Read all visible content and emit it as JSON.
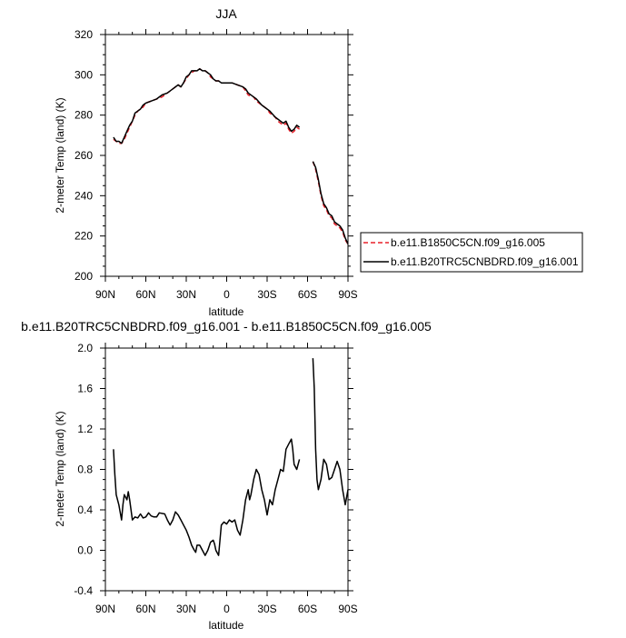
{
  "chart_data": [
    {
      "type": "line",
      "title": "JJA",
      "xlabel": "latitude",
      "ylabel": "2-meter Temp (land) (K)",
      "xlim": [
        90,
        -90
      ],
      "ylim": [
        200,
        320
      ],
      "xticks": [
        90,
        60,
        30,
        0,
        -30,
        -60,
        -90
      ],
      "xtick_labels": [
        "90N",
        "60N",
        "30N",
        "0",
        "30S",
        "60S",
        "90S"
      ],
      "yticks": [
        200,
        220,
        240,
        260,
        280,
        300,
        320
      ],
      "ytick_labels": [
        "200",
        "220",
        "240",
        "260",
        "280",
        "300",
        "320"
      ],
      "legend_position": "right",
      "series": [
        {
          "name": "b.e11.B1850C5CN.f09_g16.005",
          "color": "#e8202a",
          "dash": "dashed",
          "segments": [
            [
              [
                84,
                268
              ],
              [
                82,
                267
              ],
              [
                80,
                266
              ],
              [
                78,
                266
              ],
              [
                76,
                268
              ],
              [
                74,
                271
              ],
              [
                72,
                274
              ],
              [
                70,
                277
              ],
              [
                68,
                280
              ],
              [
                66,
                282
              ],
              [
                64,
                283
              ],
              [
                62,
                284
              ],
              [
                60,
                286
              ],
              [
                56,
                287
              ],
              [
                52,
                288
              ],
              [
                48,
                289
              ],
              [
                44,
                291
              ],
              [
                40,
                293
              ],
              [
                38,
                294
              ],
              [
                36,
                295
              ],
              [
                34,
                294
              ],
              [
                32,
                296
              ],
              [
                30,
                298
              ],
              [
                28,
                300
              ],
              [
                26,
                301
              ],
              [
                24,
                302
              ],
              [
                22,
                302
              ],
              [
                20,
                303
              ],
              [
                18,
                302
              ],
              [
                16,
                302
              ],
              [
                14,
                301
              ],
              [
                12,
                299
              ],
              [
                10,
                298
              ],
              [
                8,
                297
              ],
              [
                6,
                297
              ],
              [
                4,
                296
              ],
              [
                0,
                296
              ],
              [
                -4,
                296
              ],
              [
                -8,
                295
              ],
              [
                -12,
                294
              ],
              [
                -14,
                292
              ],
              [
                -16,
                290
              ],
              [
                -20,
                289
              ],
              [
                -22,
                287
              ],
              [
                -26,
                285
              ],
              [
                -30,
                283
              ],
              [
                -32,
                281
              ],
              [
                -36,
                279
              ],
              [
                -38,
                277
              ],
              [
                -40,
                276
              ],
              [
                -42,
                275
              ],
              [
                -44,
                276
              ],
              [
                -46,
                273
              ],
              [
                -48,
                271
              ],
              [
                -50,
                272
              ],
              [
                -52,
                274
              ],
              [
                -54,
                273
              ]
            ],
            [
              [
                -64,
                257
              ],
              [
                -66,
                253
              ],
              [
                -68,
                247
              ],
              [
                -70,
                240
              ],
              [
                -72,
                235
              ],
              [
                -74,
                233
              ],
              [
                -76,
                230
              ],
              [
                -78,
                229
              ],
              [
                -80,
                226
              ],
              [
                -82,
                225
              ],
              [
                -84,
                224
              ],
              [
                -86,
                222
              ],
              [
                -88,
                218
              ],
              [
                -90,
                216
              ]
            ]
          ]
        },
        {
          "name": "b.e11.B20TRC5CNBDRD.f09_g16.001",
          "color": "#000000",
          "dash": "solid",
          "segments": [
            [
              [
                84,
                269
              ],
              [
                82,
                267
              ],
              [
                80,
                267
              ],
              [
                78,
                266
              ],
              [
                76,
                269
              ],
              [
                74,
                272
              ],
              [
                72,
                275
              ],
              [
                70,
                277
              ],
              [
                68,
                281
              ],
              [
                66,
                282
              ],
              [
                64,
                283
              ],
              [
                62,
                285
              ],
              [
                60,
                286
              ],
              [
                56,
                287
              ],
              [
                52,
                288
              ],
              [
                48,
                290
              ],
              [
                44,
                291
              ],
              [
                40,
                293
              ],
              [
                38,
                294
              ],
              [
                36,
                295
              ],
              [
                34,
                294
              ],
              [
                32,
                296
              ],
              [
                30,
                299
              ],
              [
                28,
                300
              ],
              [
                26,
                302
              ],
              [
                24,
                302
              ],
              [
                22,
                302
              ],
              [
                20,
                303
              ],
              [
                18,
                302
              ],
              [
                16,
                302
              ],
              [
                14,
                301
              ],
              [
                12,
                300
              ],
              [
                10,
                298
              ],
              [
                8,
                297
              ],
              [
                6,
                297
              ],
              [
                4,
                296
              ],
              [
                0,
                296
              ],
              [
                -4,
                296
              ],
              [
                -8,
                295
              ],
              [
                -12,
                294
              ],
              [
                -14,
                293
              ],
              [
                -16,
                291
              ],
              [
                -20,
                289
              ],
              [
                -22,
                288
              ],
              [
                -26,
                285
              ],
              [
                -30,
                283
              ],
              [
                -32,
                282
              ],
              [
                -36,
                279
              ],
              [
                -38,
                278
              ],
              [
                -40,
                277
              ],
              [
                -42,
                276
              ],
              [
                -44,
                277
              ],
              [
                -46,
                274
              ],
              [
                -48,
                272
              ],
              [
                -50,
                273
              ],
              [
                -52,
                275
              ],
              [
                -54,
                274
              ]
            ],
            [
              [
                -64,
                257
              ],
              [
                -66,
                254
              ],
              [
                -68,
                248
              ],
              [
                -70,
                241
              ],
              [
                -72,
                236
              ],
              [
                -74,
                234
              ],
              [
                -76,
                231
              ],
              [
                -78,
                230
              ],
              [
                -80,
                227
              ],
              [
                -82,
                226
              ],
              [
                -84,
                225
              ],
              [
                -86,
                223
              ],
              [
                -88,
                219
              ],
              [
                -90,
                216
              ]
            ]
          ]
        }
      ]
    },
    {
      "type": "line",
      "title": "b.e11.B20TRC5CNBDRD.f09_g16.001 - b.e11.B1850C5CN.f09_g16.005",
      "xlabel": "latitude",
      "ylabel": "2-meter Temp (land) (K)",
      "xlim": [
        90,
        -90
      ],
      "ylim": [
        -0.4,
        2.0
      ],
      "xticks": [
        90,
        60,
        30,
        0,
        -30,
        -60,
        -90
      ],
      "xtick_labels": [
        "90N",
        "60N",
        "30N",
        "0",
        "30S",
        "60S",
        "90S"
      ],
      "yticks": [
        -0.4,
        0.0,
        0.4,
        0.8,
        1.2,
        1.6,
        2.0
      ],
      "ytick_labels": [
        "-0.4",
        "0.0",
        "0.4",
        "0.8",
        "1.2",
        "1.6",
        "2.0"
      ],
      "series": [
        {
          "color": "#000000",
          "dash": "solid",
          "segments": [
            [
              [
                84,
                1.0
              ],
              [
                83,
                0.75
              ],
              [
                82,
                0.55
              ],
              [
                80,
                0.45
              ],
              [
                78,
                0.3
              ],
              [
                77,
                0.45
              ],
              [
                76,
                0.55
              ],
              [
                74,
                0.5
              ],
              [
                73,
                0.58
              ],
              [
                72,
                0.5
              ],
              [
                70,
                0.3
              ],
              [
                68,
                0.33
              ],
              [
                66,
                0.32
              ],
              [
                64,
                0.36
              ],
              [
                62,
                0.32
              ],
              [
                60,
                0.33
              ],
              [
                58,
                0.37
              ],
              [
                56,
                0.34
              ],
              [
                54,
                0.33
              ],
              [
                52,
                0.33
              ],
              [
                50,
                0.37
              ],
              [
                46,
                0.36
              ],
              [
                44,
                0.3
              ],
              [
                42,
                0.25
              ],
              [
                40,
                0.3
              ],
              [
                38,
                0.38
              ],
              [
                36,
                0.35
              ],
              [
                34,
                0.3
              ],
              [
                32,
                0.25
              ],
              [
                30,
                0.2
              ],
              [
                28,
                0.13
              ],
              [
                26,
                0.05
              ],
              [
                24,
                0.0
              ],
              [
                23,
                -0.02
              ],
              [
                22,
                0.05
              ],
              [
                20,
                0.05
              ],
              [
                18,
                0.0
              ],
              [
                16,
                -0.05
              ],
              [
                14,
                0.0
              ],
              [
                12,
                0.08
              ],
              [
                10,
                0.1
              ],
              [
                9,
                0.06
              ],
              [
                8,
                0.0
              ],
              [
                6,
                -0.05
              ],
              [
                5,
                0.1
              ],
              [
                4,
                0.25
              ],
              [
                2,
                0.28
              ],
              [
                0,
                0.26
              ],
              [
                -2,
                0.3
              ],
              [
                -4,
                0.28
              ],
              [
                -6,
                0.3
              ],
              [
                -8,
                0.2
              ],
              [
                -10,
                0.15
              ],
              [
                -12,
                0.3
              ],
              [
                -14,
                0.5
              ],
              [
                -16,
                0.6
              ],
              [
                -17,
                0.5
              ],
              [
                -18,
                0.55
              ],
              [
                -20,
                0.7
              ],
              [
                -22,
                0.8
              ],
              [
                -24,
                0.75
              ],
              [
                -26,
                0.6
              ],
              [
                -28,
                0.5
              ],
              [
                -30,
                0.35
              ],
              [
                -32,
                0.5
              ],
              [
                -34,
                0.45
              ],
              [
                -36,
                0.6
              ],
              [
                -38,
                0.7
              ],
              [
                -40,
                0.8
              ],
              [
                -42,
                0.78
              ],
              [
                -44,
                1.0
              ],
              [
                -46,
                1.05
              ],
              [
                -48,
                1.1
              ],
              [
                -49,
                1.0
              ],
              [
                -50,
                0.85
              ],
              [
                -52,
                0.8
              ],
              [
                -54,
                0.9
              ]
            ],
            [
              [
                -64,
                1.9
              ],
              [
                -65,
                1.6
              ],
              [
                -66,
                1.0
              ],
              [
                -67,
                0.7
              ],
              [
                -68,
                0.6
              ],
              [
                -70,
                0.7
              ],
              [
                -72,
                0.9
              ],
              [
                -74,
                0.85
              ],
              [
                -76,
                0.7
              ],
              [
                -78,
                0.72
              ],
              [
                -80,
                0.8
              ],
              [
                -82,
                0.88
              ],
              [
                -84,
                0.8
              ],
              [
                -86,
                0.6
              ],
              [
                -88,
                0.45
              ],
              [
                -90,
                0.6
              ]
            ]
          ]
        }
      ]
    }
  ]
}
